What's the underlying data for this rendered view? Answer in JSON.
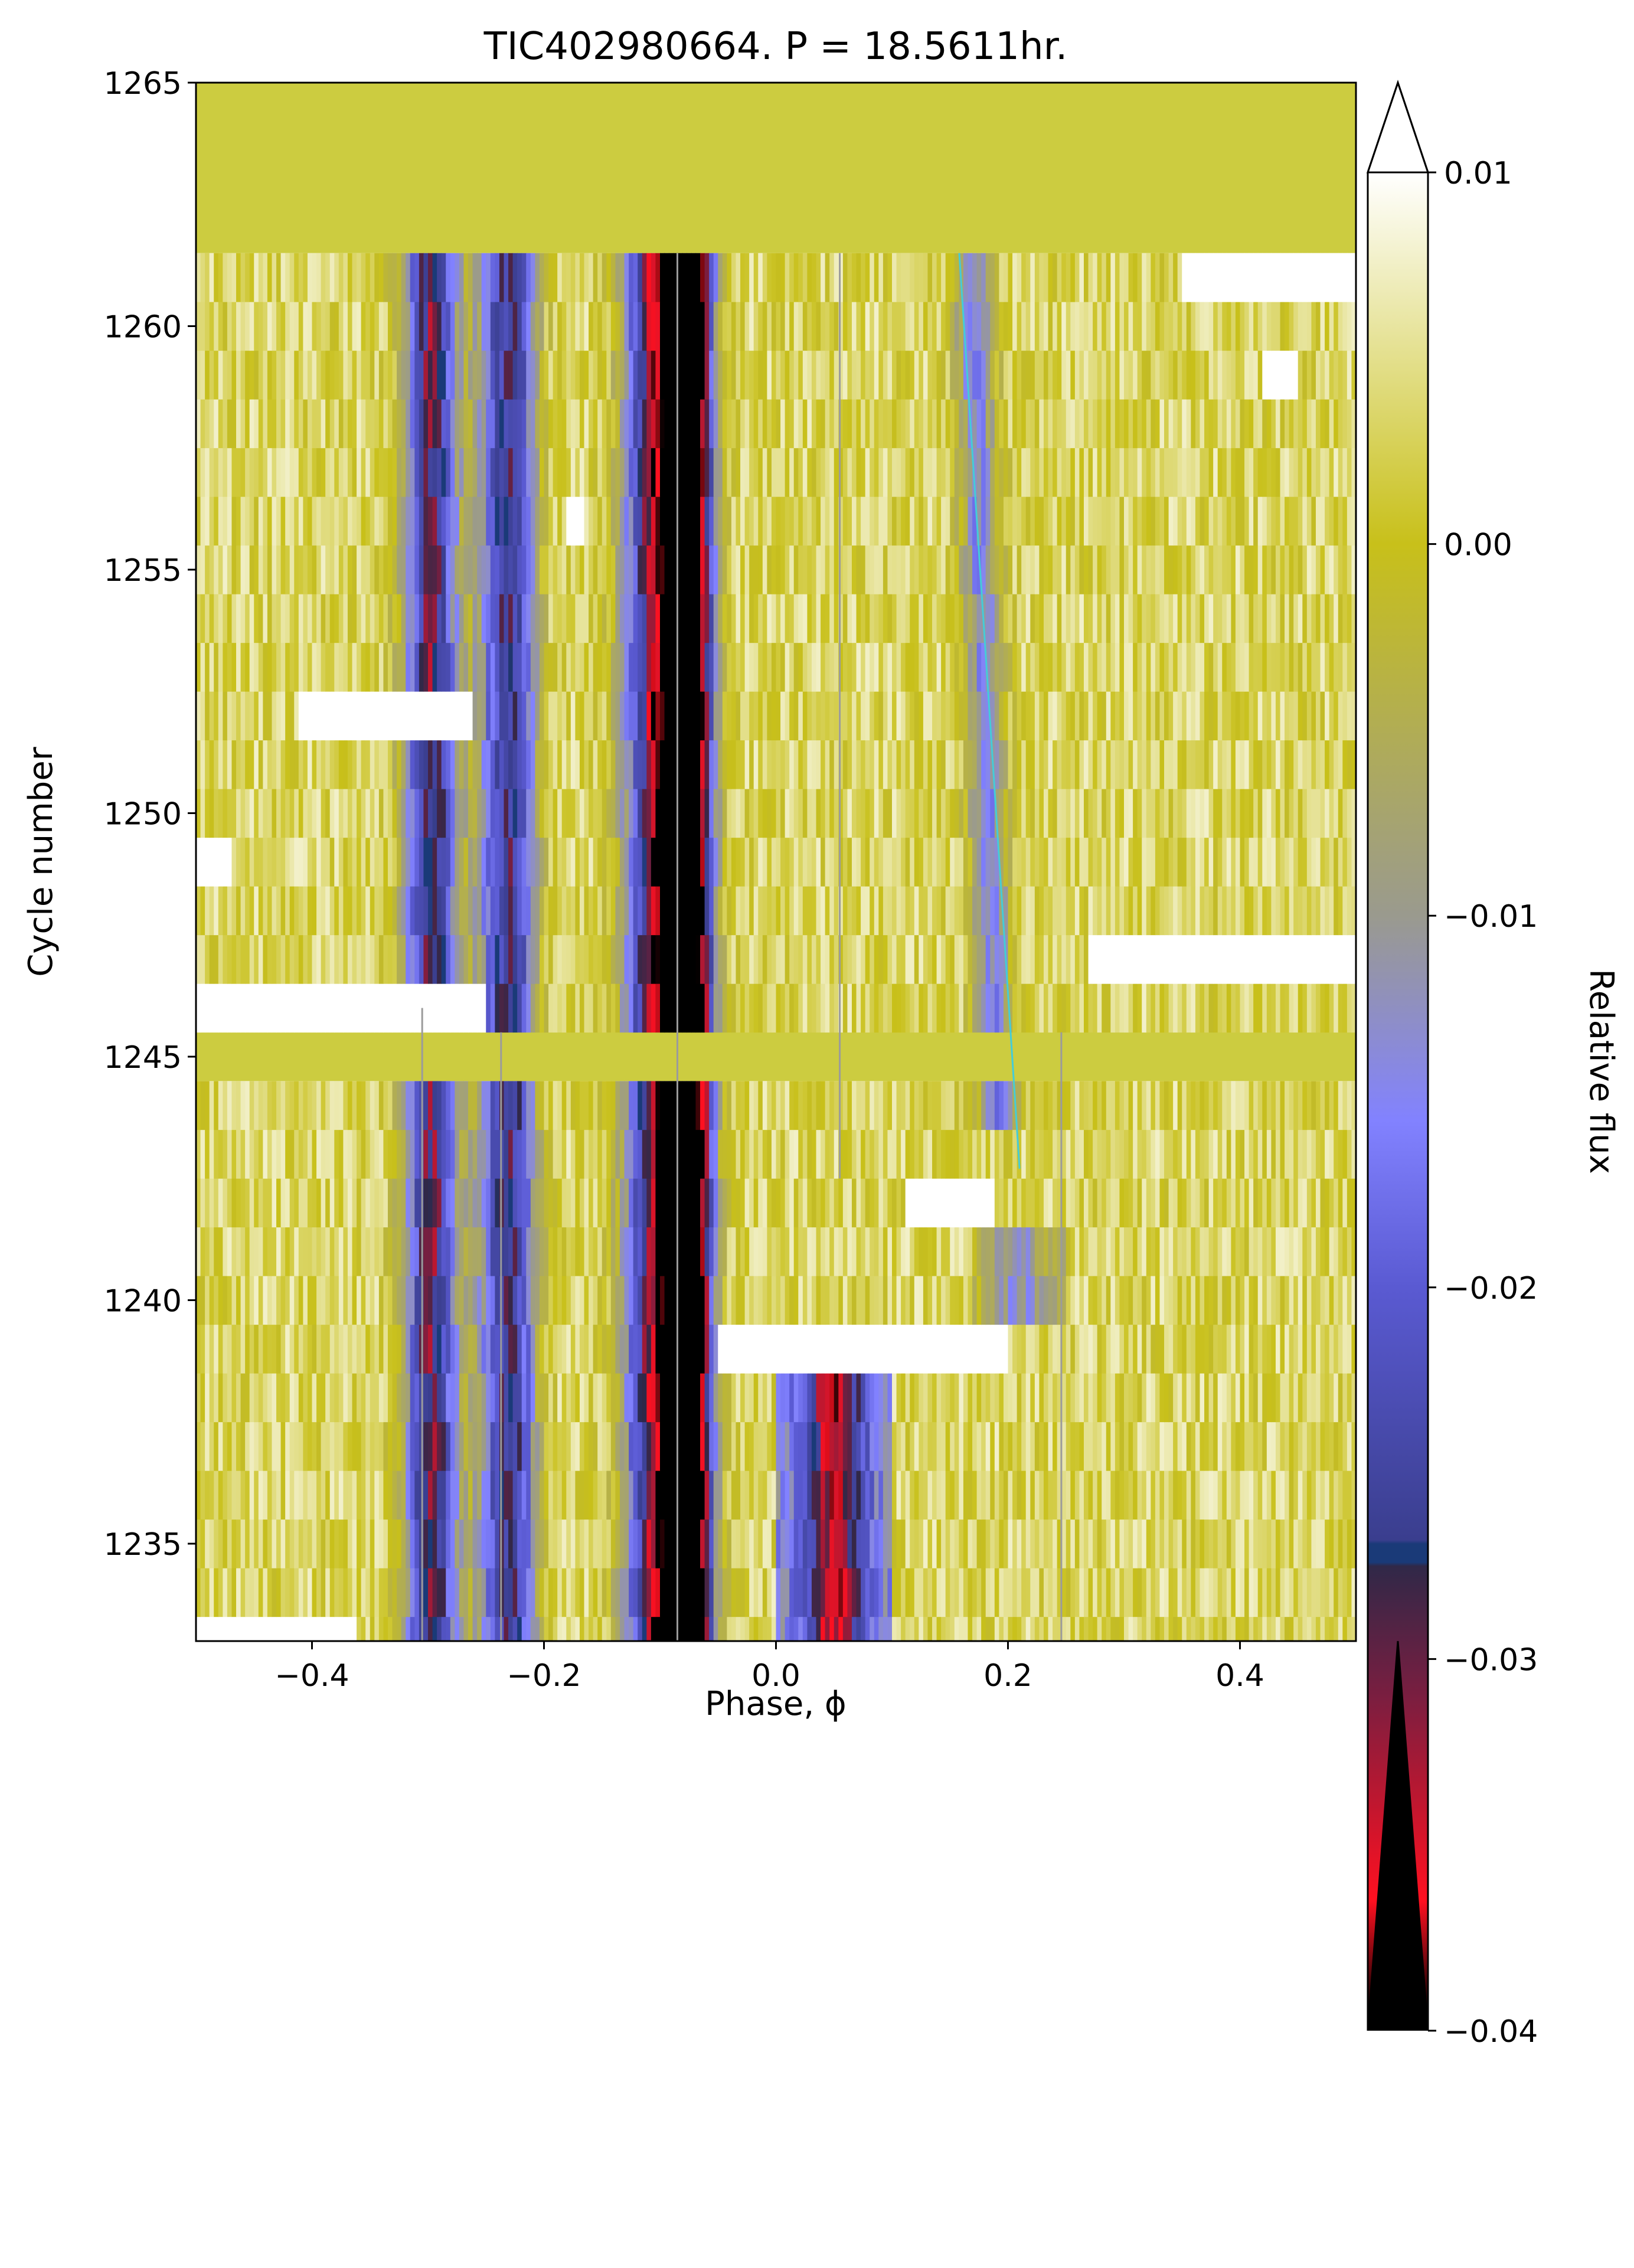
{
  "chart_data": {
    "type": "heatmap",
    "title": "TIC402980664. P = 18.5611hr.",
    "xlabel": "Phase, ϕ",
    "ylabel": "Cycle number",
    "xlim": [
      -0.5,
      0.5
    ],
    "ylim": [
      1233,
      1265
    ],
    "xticks": [
      -0.4,
      -0.2,
      0.0,
      0.2,
      0.4
    ],
    "xtick_labels": [
      "−0.4",
      "−0.2",
      "0.0",
      "0.2",
      "0.4"
    ],
    "yticks": [
      1235,
      1240,
      1245,
      1250,
      1255,
      1260,
      1265
    ],
    "ytick_labels": [
      "1235",
      "1240",
      "1245",
      "1250",
      "1255",
      "1260",
      "1265"
    ],
    "colorbar": {
      "label": "Relative flux",
      "range": [
        -0.04,
        0.01
      ],
      "extend": "both",
      "ticks": [
        0.01,
        0.0,
        -0.01,
        -0.02,
        -0.03,
        -0.04
      ],
      "tick_labels": [
        "0.01",
        "0.00",
        "−0.01",
        "−0.02",
        "−0.03",
        "−0.04"
      ],
      "stops": [
        {
          "v": 0.01,
          "c": "#ffffff"
        },
        {
          "v": 0.0,
          "c": "#c8c01a"
        },
        {
          "v": -0.01,
          "c": "#9a9a8e"
        },
        {
          "v": -0.0155,
          "c": "#8282ff"
        },
        {
          "v": -0.02,
          "c": "#5a5ad2"
        },
        {
          "v": -0.0268,
          "c": "#3a3e8e"
        },
        {
          "v": -0.0269,
          "c": "#1a3a78"
        },
        {
          "v": -0.0274,
          "c": "#1a3a78"
        },
        {
          "v": -0.0275,
          "c": "#302848"
        },
        {
          "v": -0.031,
          "c": "#7a1e40"
        },
        {
          "v": -0.0365,
          "c": "#ff1020"
        },
        {
          "v": -0.0395,
          "c": "#000000"
        },
        {
          "v": -0.04,
          "c": "#000000"
        }
      ],
      "under_color": "#000000",
      "over_color": "#ffffff"
    },
    "rows": {
      "first_cycle": 1233,
      "last_cycle": 1261,
      "empty_cycles": [
        1245
      ],
      "empty_color": "#cccc40",
      "top_fill_from": 1261.5,
      "top_fill_color": "#cccc40"
    },
    "dips": [
      {
        "center": -0.305,
        "width": 0.014,
        "depth": 0.018
      },
      {
        "center": -0.29,
        "width": 0.014,
        "depth": 0.02
      },
      {
        "center": -0.24,
        "width": 0.014,
        "depth": 0.022
      },
      {
        "center": -0.22,
        "width": 0.012,
        "depth": 0.018
      },
      {
        "center": -0.12,
        "width": 0.014,
        "depth": 0.015
      },
      {
        "center": -0.1,
        "width": 0.014,
        "depth": 0.02
      },
      {
        "center": -0.082,
        "width": 0.016,
        "depth": 0.036
      },
      {
        "center": -0.065,
        "width": 0.01,
        "depth": 0.022
      }
    ],
    "bright_patches": [
      {
        "cycle": 1233,
        "x0": -0.5,
        "x1": -0.36
      },
      {
        "cycle": 1239,
        "x0": -0.05,
        "x1": 0.2
      },
      {
        "cycle": 1242,
        "x0": 0.11,
        "x1": 0.19
      },
      {
        "cycle": 1246,
        "x0": -0.5,
        "x1": -0.25
      },
      {
        "cycle": 1247,
        "x0": 0.27,
        "x1": 0.5
      },
      {
        "cycle": 1249,
        "x0": -0.5,
        "x1": -0.47
      },
      {
        "cycle": 1252,
        "x0": -0.41,
        "x1": -0.26
      },
      {
        "cycle": 1256,
        "x0": -0.18,
        "x1": -0.165
      },
      {
        "cycle": 1259,
        "x0": 0.42,
        "x1": 0.45
      },
      {
        "cycle": 1261,
        "x0": 0.35,
        "x1": 0.5
      }
    ],
    "moving_features": [
      {
        "phase_start": 0.0,
        "phase_end": 0.1,
        "cycle_start": 1233,
        "cycle_end": 1238,
        "depth": 0.038
      },
      {
        "phase_start": 0.17,
        "phase_end": 0.25,
        "cycle_start": 1240,
        "cycle_end": 1241,
        "depth": 0.016
      }
    ],
    "drifting_dip": {
      "phase_at_top": 0.17,
      "phase_at_bottom": 0.19,
      "cycle_top": 1261,
      "cycle_bottom": 1244,
      "width": 0.012,
      "depth": 0.018
    },
    "ref_lines": {
      "color": "#9b9b9b",
      "vertical": [
        {
          "x": -0.305,
          "y0": 1233,
          "y1": 1246
        },
        {
          "x": -0.237,
          "y0": 1233,
          "y1": 1245.5
        },
        {
          "x": -0.085,
          "y0": 1233,
          "y1": 1261.5
        },
        {
          "x": 0.055,
          "y0": 1242.5,
          "y1": 1261.5
        },
        {
          "x": 0.246,
          "y0": 1233,
          "y1": 1245.5
        }
      ]
    },
    "drift_line": {
      "color": "#44ccd8",
      "points": [
        [
          0.158,
          1261.5
        ],
        [
          0.21,
          1242.7
        ]
      ]
    }
  }
}
